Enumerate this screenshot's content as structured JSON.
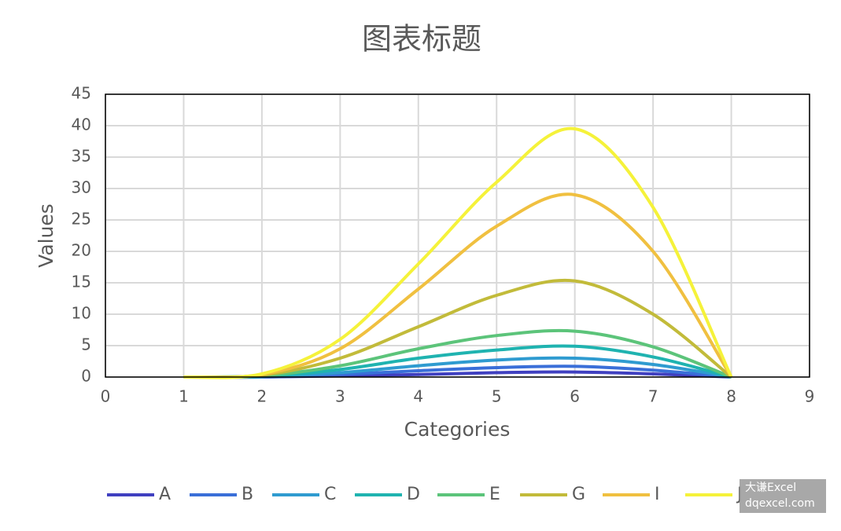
{
  "chart_data": {
    "type": "line",
    "title": "图表标题",
    "x_label": "Categories",
    "y_label": "Values",
    "x": [
      1,
      2,
      3,
      4,
      5,
      6,
      7,
      8
    ],
    "series": [
      {
        "name": "A",
        "color": "#4040c0",
        "values": [
          0,
          0,
          0.2,
          0.4,
          0.7,
          0.8,
          0.5,
          0
        ]
      },
      {
        "name": "B",
        "color": "#3a6fd8",
        "values": [
          0,
          0,
          0.4,
          1,
          1.5,
          1.7,
          1.1,
          0
        ]
      },
      {
        "name": "C",
        "color": "#2f9bd0",
        "values": [
          0,
          0.1,
          0.7,
          1.8,
          2.7,
          3,
          2,
          0
        ]
      },
      {
        "name": "D",
        "color": "#1fb3b0",
        "values": [
          0,
          0.1,
          1.2,
          3,
          4.3,
          4.9,
          3.2,
          0
        ]
      },
      {
        "name": "E",
        "color": "#5cc47a",
        "values": [
          0,
          0.2,
          1.8,
          4.5,
          6.6,
          7.3,
          4.8,
          0
        ]
      },
      {
        "name": "G",
        "color": "#c2bb3a",
        "values": [
          0,
          0.3,
          3,
          8,
          13,
          15.3,
          10,
          0
        ]
      },
      {
        "name": "I",
        "color": "#f0c040",
        "values": [
          0,
          0.4,
          4.5,
          14,
          24,
          29,
          20,
          0
        ]
      },
      {
        "name": "J",
        "color": "#f5f23a",
        "values": [
          0,
          0.5,
          6,
          18,
          31,
          39.5,
          27,
          0
        ]
      }
    ],
    "xlim": [
      0,
      9
    ],
    "xticks": [
      0,
      1,
      2,
      3,
      4,
      5,
      6,
      7,
      8,
      9
    ],
    "ylim": [
      0,
      45
    ],
    "yticks": [
      0,
      5,
      10,
      15,
      20,
      25,
      30,
      35,
      40,
      45
    ],
    "grid": true,
    "smooth": true,
    "legend": "bottom"
  },
  "watermark": [
    "大谦Excel",
    "dqexcel.com"
  ]
}
